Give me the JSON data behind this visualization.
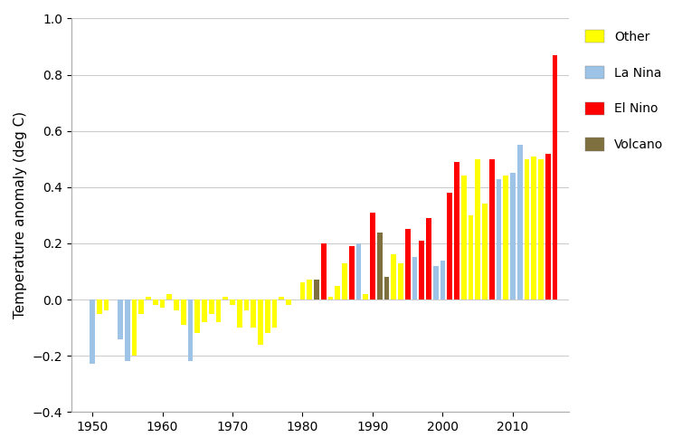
{
  "years": [
    1950,
    1951,
    1952,
    1953,
    1954,
    1955,
    1956,
    1957,
    1958,
    1959,
    1960,
    1961,
    1962,
    1963,
    1964,
    1965,
    1966,
    1967,
    1968,
    1969,
    1970,
    1971,
    1972,
    1973,
    1974,
    1975,
    1976,
    1977,
    1978,
    1979,
    1980,
    1981,
    1982,
    1983,
    1984,
    1985,
    1986,
    1987,
    1988,
    1989,
    1990,
    1991,
    1992,
    1993,
    1994,
    1995,
    1996,
    1997,
    1998,
    1999,
    2000,
    2001,
    2002,
    2003,
    2004,
    2005,
    2006,
    2007,
    2008,
    2009,
    2010,
    2011,
    2012,
    2013,
    2014,
    2015,
    2016
  ],
  "values": [
    -0.23,
    -0.05,
    -0.04,
    0.0,
    -0.14,
    -0.22,
    -0.2,
    -0.05,
    0.01,
    -0.02,
    -0.03,
    0.02,
    -0.04,
    -0.09,
    -0.22,
    -0.12,
    -0.08,
    -0.05,
    -0.08,
    0.01,
    -0.02,
    -0.1,
    -0.04,
    -0.1,
    -0.16,
    -0.12,
    -0.1,
    0.01,
    -0.02,
    0.0,
    0.06,
    0.07,
    0.07,
    0.2,
    0.01,
    0.05,
    0.13,
    0.19,
    0.2,
    0.02,
    0.31,
    0.24,
    0.08,
    0.16,
    0.13,
    0.25,
    0.15,
    0.21,
    0.29,
    0.12,
    0.14,
    0.38,
    0.49,
    0.44,
    0.3,
    0.5,
    0.34,
    0.5,
    0.43,
    0.44,
    0.45,
    0.55,
    0.5,
    0.51,
    0.5,
    0.52,
    0.87
  ],
  "categories": {
    "1950": "La Nina",
    "1951": "Other",
    "1952": "Other",
    "1953": "Other",
    "1954": "La Nina",
    "1955": "La Nina",
    "1956": "Other",
    "1957": "Other",
    "1958": "Other",
    "1959": "Other",
    "1960": "Other",
    "1961": "Other",
    "1962": "Other",
    "1963": "Other",
    "1964": "La Nina",
    "1965": "Other",
    "1966": "Other",
    "1967": "Other",
    "1968": "Other",
    "1969": "Other",
    "1970": "Other",
    "1971": "Other",
    "1972": "Other",
    "1973": "Other",
    "1974": "Other",
    "1975": "Other",
    "1976": "Other",
    "1977": "Other",
    "1978": "Other",
    "1979": "Other",
    "1980": "Other",
    "1981": "Other",
    "1982": "Volcano",
    "1983": "El Nino",
    "1984": "Other",
    "1985": "Other",
    "1986": "Other",
    "1987": "El Nino",
    "1988": "La Nina",
    "1989": "Other",
    "1990": "El Nino",
    "1991": "Volcano",
    "1992": "Volcano",
    "1993": "Other",
    "1994": "Other",
    "1995": "El Nino",
    "1996": "La Nina",
    "1997": "El Nino",
    "1998": "El Nino",
    "1999": "La Nina",
    "2000": "La Nina",
    "2001": "El Nino",
    "2002": "El Nino",
    "2003": "Other",
    "2004": "Other",
    "2005": "Other",
    "2006": "Other",
    "2007": "El Nino",
    "2008": "La Nina",
    "2009": "Other",
    "2010": "La Nina",
    "2011": "La Nina",
    "2012": "Other",
    "2013": "Other",
    "2014": "Other",
    "2015": "El Nino",
    "2016": "El Nino"
  },
  "colors": {
    "Other": "#FFFF00",
    "La Nina": "#9DC3E6",
    "El Nino": "#FF0000",
    "Volcano": "#7F7040"
  },
  "ylabel": "Temperature anomaly (deg C)",
  "ylim": [
    -0.4,
    1.0
  ],
  "yticks": [
    -0.4,
    -0.2,
    0.0,
    0.2,
    0.4,
    0.6,
    0.8,
    1.0
  ],
  "xtick_positions": [
    1950,
    1960,
    1970,
    1980,
    1990,
    2000,
    2010
  ],
  "xtick_labels": [
    "1950",
    "1960",
    "1970",
    "1980",
    "1990",
    "2000",
    "2010"
  ],
  "background_color": "#FFFFFF",
  "grid_color": "#CCCCCC",
  "legend_labels": [
    "Other",
    "La Nina",
    "El Nino",
    "Volcano"
  ],
  "bar_width": 0.75,
  "xlim": [
    1947,
    2018
  ]
}
